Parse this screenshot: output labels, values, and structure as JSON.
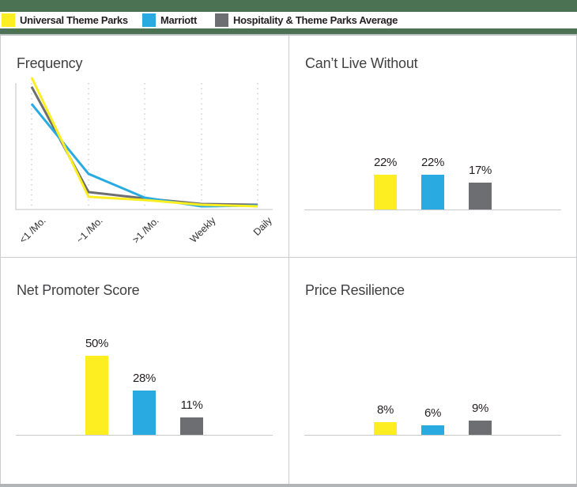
{
  "colors": {
    "yellow": "#FCEE21",
    "blue": "#29ABE2",
    "gray": "#6D6E71",
    "green_bar": "#4A7253",
    "bottom_bar": "#B2B4B6",
    "title_text": "#414042",
    "label_text": "#231F20",
    "axis": "#D4D6D8",
    "divider": "#CBCDCF"
  },
  "legend": {
    "items": [
      {
        "label": "Universal Theme Parks",
        "color_key": "yellow"
      },
      {
        "label": "Marriott",
        "color_key": "blue"
      },
      {
        "label": "Hospitality & Theme Parks Average",
        "color_key": "gray"
      }
    ]
  },
  "chart_data": [
    {
      "id": "frequency",
      "type": "line",
      "title": "Frequency",
      "categories": [
        "<1 /Mo.",
        "~1 /Mo.",
        ">1 /Mo.",
        "Weekly",
        "Daily"
      ],
      "y_axis_tick_labels": [],
      "ylim": [
        0,
        100
      ],
      "grid": "dotted-vertical-gridlines",
      "legend_position": "top-of-page",
      "series": [
        {
          "name": "Hospitality & Theme Parks Average",
          "color_key": "gray",
          "values": [
            93,
            13.2,
            8.4,
            4.2,
            3.6
          ]
        },
        {
          "name": "Marriott",
          "color_key": "blue",
          "values": [
            80,
            27,
            9,
            2.4,
            3
          ]
        },
        {
          "name": "Universal Theme Parks",
          "color_key": "yellow",
          "values": [
            100,
            9.6,
            7.2,
            3.6,
            2.4
          ]
        }
      ],
      "note": "y values are relative (no axis labels shown); estimated as % of plot height"
    },
    {
      "id": "cant-live-without",
      "type": "bar",
      "title": "Can’t Live Without",
      "bars": [
        {
          "name": "Universal Theme Parks",
          "color_key": "yellow",
          "value": 22,
          "label": "22%"
        },
        {
          "name": "Marriott",
          "color_key": "blue",
          "value": 22,
          "label": "22%"
        },
        {
          "name": "Hospitality & Theme Parks Average",
          "color_key": "gray",
          "value": 17,
          "label": "17%"
        }
      ],
      "ylim": [
        0,
        100
      ]
    },
    {
      "id": "net-promoter-score",
      "type": "bar",
      "title": "Net Promoter Score",
      "bars": [
        {
          "name": "Universal Theme Parks",
          "color_key": "yellow",
          "value": 50,
          "label": "50%"
        },
        {
          "name": "Marriott",
          "color_key": "blue",
          "value": 28,
          "label": "28%"
        },
        {
          "name": "Hospitality & Theme Parks Average",
          "color_key": "gray",
          "value": 11,
          "label": "11%"
        }
      ],
      "ylim": [
        0,
        100
      ]
    },
    {
      "id": "price-resilience",
      "type": "bar",
      "title": "Price Resilience",
      "bars": [
        {
          "name": "Universal Theme Parks",
          "color_key": "yellow",
          "value": 8,
          "label": "8%"
        },
        {
          "name": "Marriott",
          "color_key": "blue",
          "value": 6,
          "label": "6%"
        },
        {
          "name": "Hospitality & Theme Parks Average",
          "color_key": "gray",
          "value": 9,
          "label": "9%"
        }
      ],
      "ylim": [
        0,
        100
      ]
    }
  ]
}
